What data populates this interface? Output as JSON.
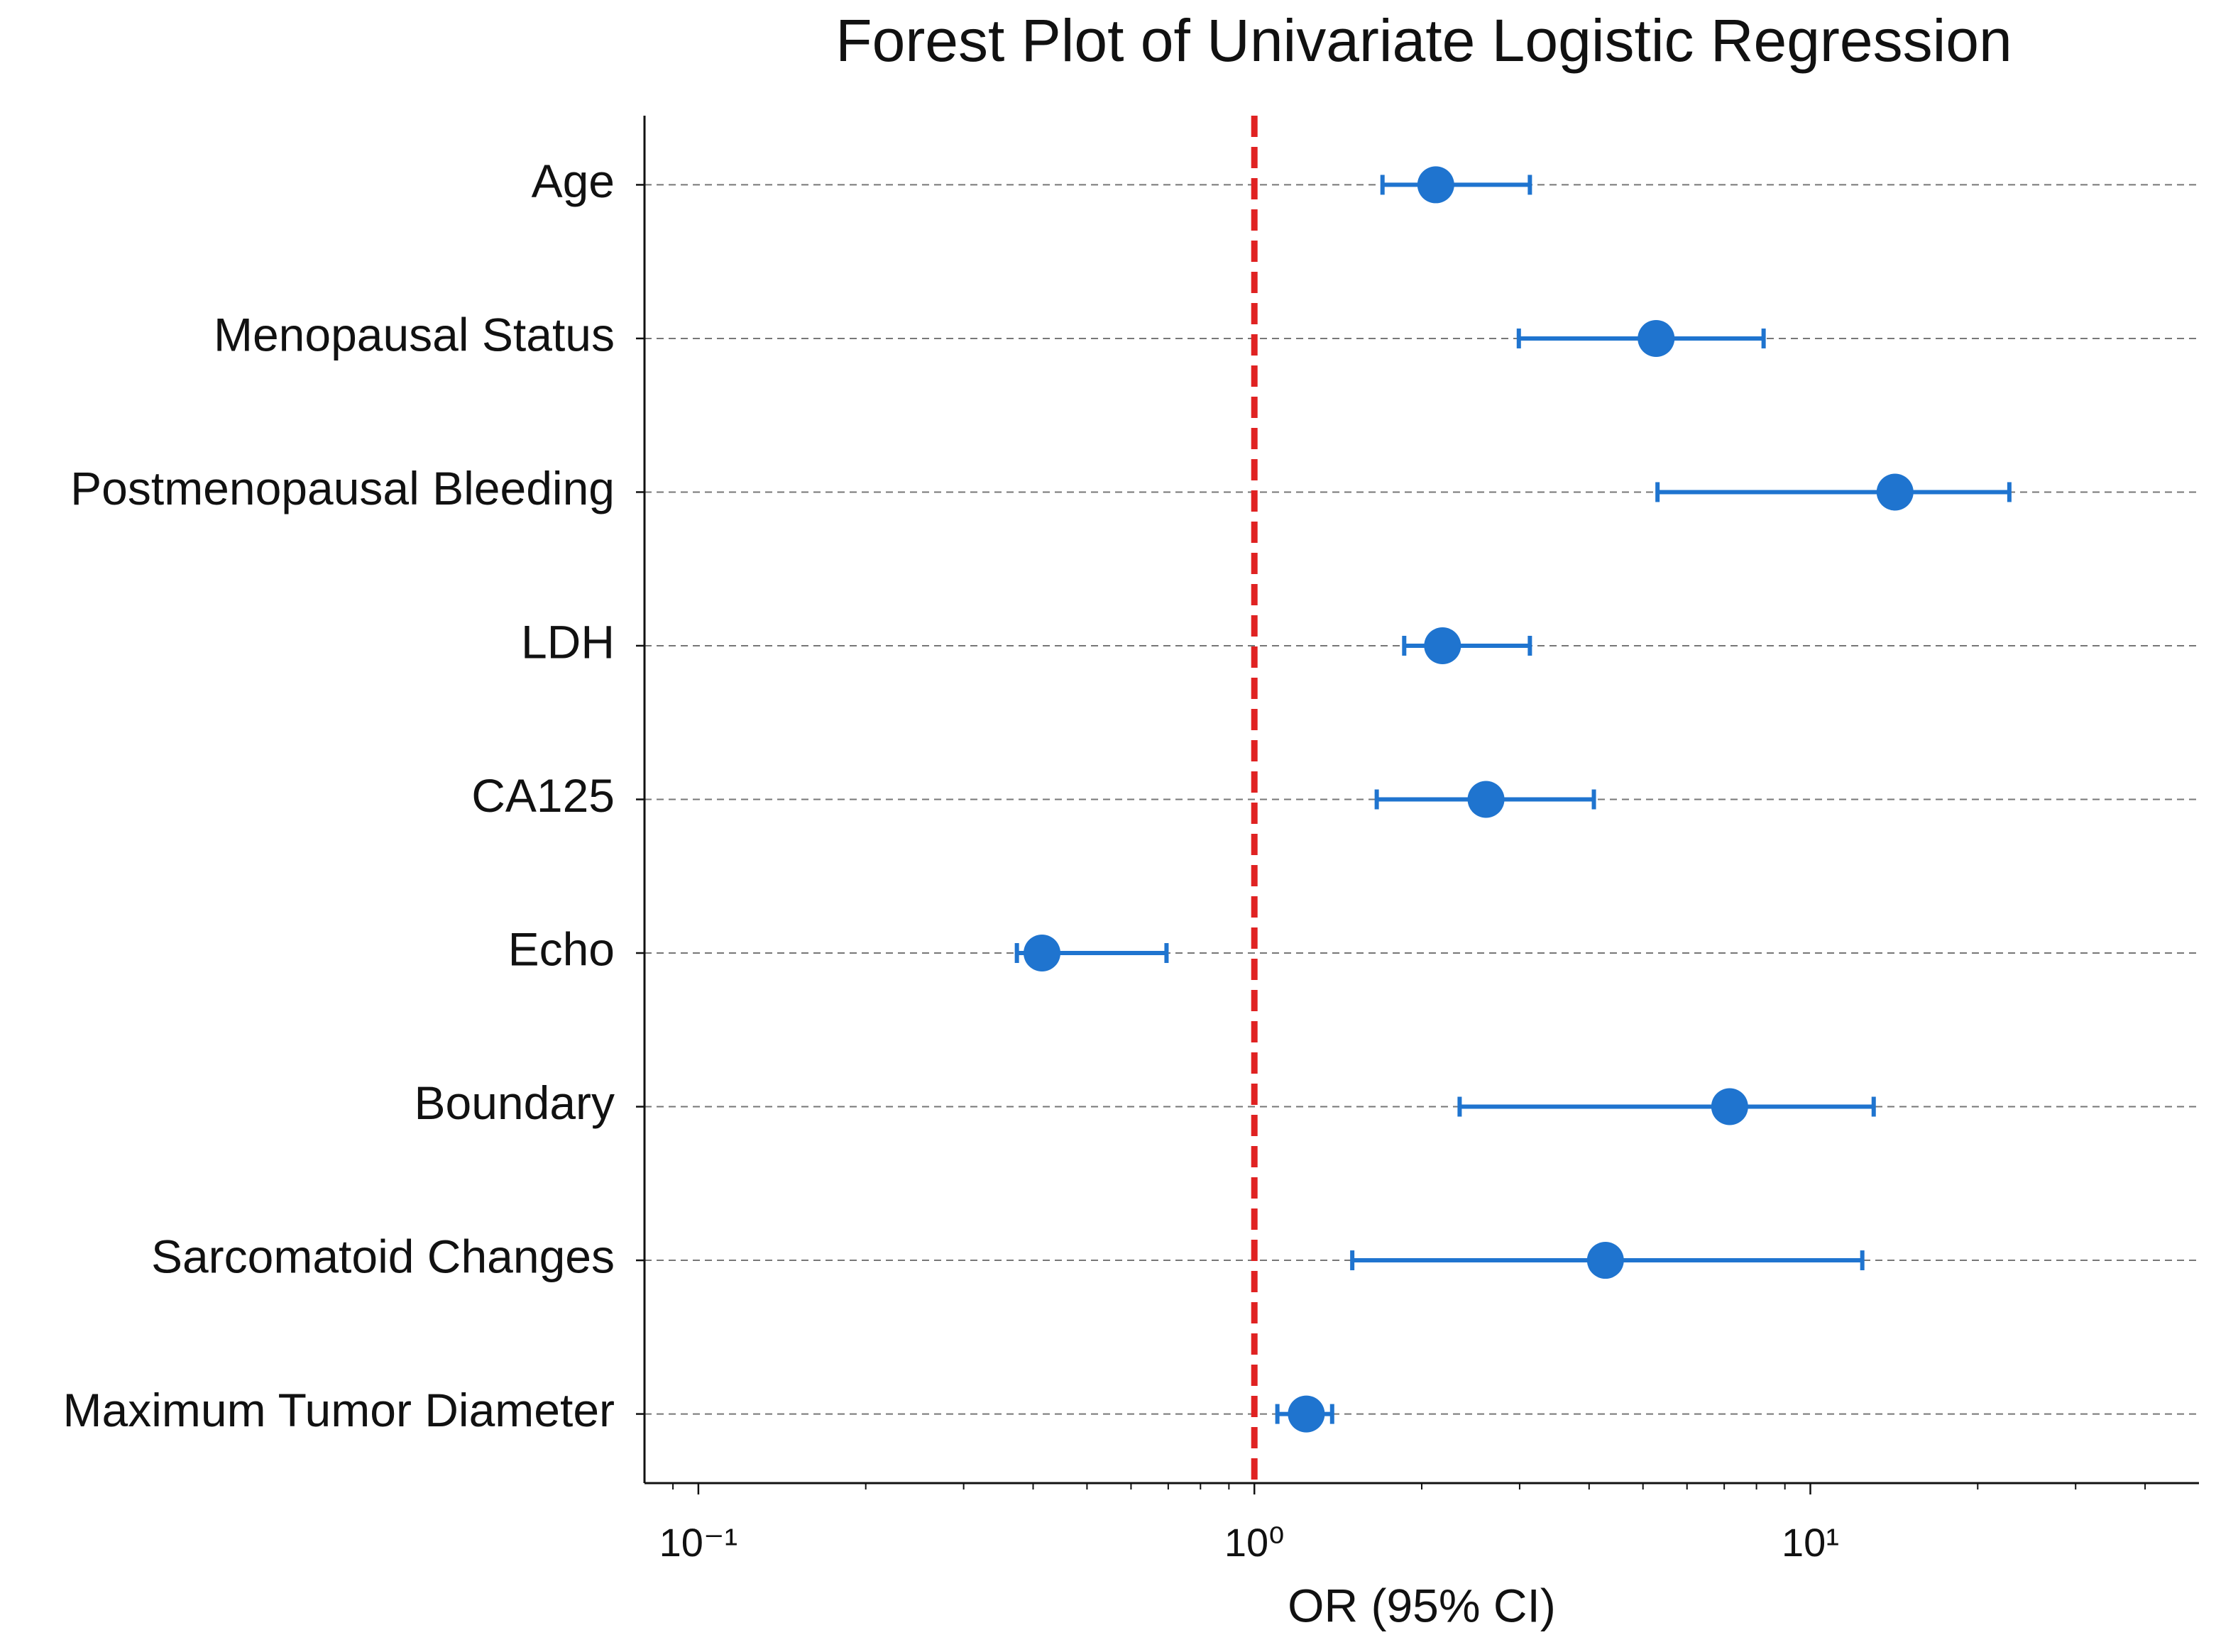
{
  "chart_data": {
    "type": "forest",
    "title": "Forest Plot of Univariate Logistic Regression",
    "xlabel": "OR (95% CI)",
    "categories": [
      "Age",
      "Menopausal Status",
      "Postmenopausal Bleeding",
      "LDH",
      "CA125",
      "Echo",
      "Boundary",
      "Sarcomatoid Changes",
      "Maximum Tumor Diameter"
    ],
    "values": [
      2.12,
      5.28,
      14.2,
      2.18,
      2.61,
      0.415,
      7.16,
      4.28,
      1.24
    ],
    "lower": [
      1.7,
      2.99,
      5.31,
      1.86,
      1.66,
      0.374,
      2.34,
      1.5,
      1.1
    ],
    "upper": [
      3.13,
      8.24,
      22.8,
      3.13,
      4.08,
      0.695,
      13.0,
      12.4,
      1.38
    ],
    "color": "#1f74cf",
    "reference_line": 1,
    "reference_color": "#e02222",
    "xscale": "log",
    "xlim": [
      0.08,
      50
    ],
    "xticks": [
      {
        "value": 0.1,
        "label": "10⁻¹"
      },
      {
        "value": 1,
        "label": "10⁰"
      },
      {
        "value": 10,
        "label": "10¹"
      }
    ],
    "xminorticks": [
      0.09,
      0.2,
      0.3,
      0.4,
      0.5,
      0.6,
      0.7,
      0.8,
      0.9,
      2,
      3,
      4,
      5,
      6,
      7,
      8,
      9,
      20,
      30,
      40
    ],
    "grid": true
  }
}
